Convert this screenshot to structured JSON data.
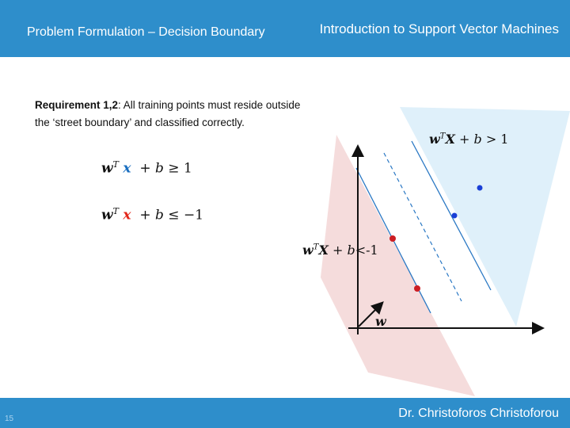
{
  "header": {
    "left_title": "Problem Formulation –  Decision Boundary",
    "right_title": "Introduction to Support Vector Machines"
  },
  "requirement": {
    "label": "Requirement 1,2",
    "text": ": All training points must reside outside the ‘street boundary’ and classified correctly."
  },
  "equations": {
    "positive": {
      "w": "w",
      "T": "T",
      "x": "x",
      "plus": "+",
      "b": "b",
      "rel": "≥ 1"
    },
    "negative": {
      "w": "w",
      "T": "T",
      "x": "x",
      "plus": "+",
      "b": "b",
      "rel": "≤ −1"
    }
  },
  "diagram": {
    "positive_label": {
      "w": "w",
      "T": "T",
      "X": "X",
      "plus": "+",
      "b": "b",
      "rel": "> 1"
    },
    "negative_label": {
      "w": "w",
      "T": "T",
      "X": "X",
      "plus": "+",
      "b": "b",
      "rel": "<-1"
    },
    "vector_label": "w",
    "colors": {
      "positive_region": "#dff0fa",
      "negative_region": "#f5dcdc",
      "positive_point": "#1a3fd6",
      "negative_point": "#cc1d23",
      "boundary_line": "#2a78c4"
    }
  },
  "footer": {
    "author": "Dr. Christoforos Christoforou",
    "page_number": "15"
  }
}
